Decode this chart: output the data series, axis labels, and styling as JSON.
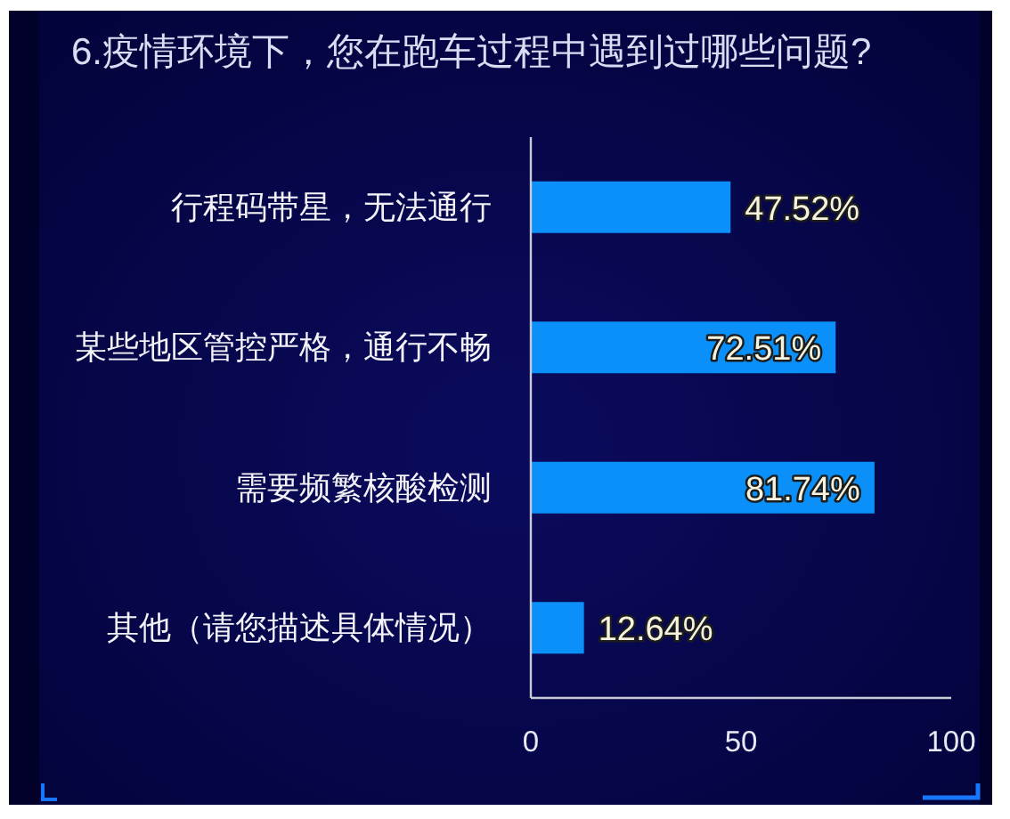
{
  "chart_data": {
    "type": "bar",
    "orientation": "horizontal",
    "title": "6.疫情环境下，您在跑车过程中遇到过哪些问题?",
    "categories": [
      "行程码带星，无法通行",
      "某些地区管控严格，通行不畅",
      "需要频繁核酸检测",
      "其他（请您描述具体情况）"
    ],
    "values": [
      47.52,
      72.51,
      81.74,
      12.64
    ],
    "color": "#0a90f8",
    "value_labels": [
      "47.52%",
      "72.51%",
      "81.74%",
      "12.64%"
    ],
    "xlim": [
      0,
      100
    ],
    "xticks": [
      0,
      50,
      100
    ]
  }
}
